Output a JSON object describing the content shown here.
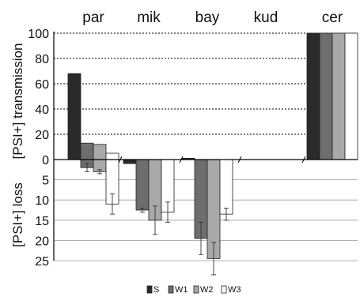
{
  "chart_data": {
    "type": "bar",
    "categories": [
      "par",
      "mik",
      "bay",
      "kud",
      "cer"
    ],
    "series": [
      {
        "name": "S",
        "color": "#2a2a2a",
        "transmission": [
          68,
          0,
          1,
          null,
          100
        ],
        "loss": [
          0,
          1,
          0,
          null,
          0
        ]
      },
      {
        "name": "W1",
        "color": "#6e6e6e",
        "transmission": [
          13,
          0,
          0,
          null,
          100
        ],
        "loss": [
          2,
          12.5,
          19.5,
          null,
          0
        ]
      },
      {
        "name": "W2",
        "color": "#a9a9a9",
        "transmission": [
          12,
          0,
          0,
          null,
          100
        ],
        "loss": [
          3,
          15,
          24.5,
          null,
          0
        ]
      },
      {
        "name": "W3",
        "color": "#ffffff",
        "transmission": [
          5,
          0,
          0,
          null,
          100
        ],
        "loss": [
          11,
          13,
          13.5,
          null,
          0
        ]
      }
    ],
    "loss_error": {
      "W1": [
        1,
        0.5,
        4,
        null,
        0
      ],
      "W2": [
        0.5,
        3.5,
        4,
        null,
        0
      ],
      "W3": [
        2.5,
        2.5,
        1.5,
        null,
        0
      ]
    },
    "transmission_axis": {
      "label": "[PSI+] transmission",
      "ylim": [
        0,
        100
      ],
      "ticks": [
        "0",
        "20",
        "40",
        "60",
        "80",
        "100"
      ]
    },
    "loss_axis": {
      "label": "[PSI+] loss",
      "ylim": [
        0,
        30
      ],
      "ticks": [
        "5",
        "10",
        "15",
        "20",
        "25"
      ]
    },
    "grid": true,
    "legend_position": "bottom-center"
  }
}
